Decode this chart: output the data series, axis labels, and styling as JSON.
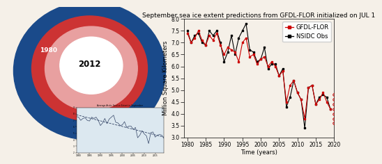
{
  "title": "September sea ice extent predictions from GFDL-FLOR initialized on JUL 1",
  "xlabel": "Time (years)",
  "ylabel": "Million Square Kilometers",
  "xlim": [
    1979,
    2020
  ],
  "ylim": [
    3.0,
    8.0
  ],
  "yticks": [
    3.0,
    3.5,
    4.0,
    4.5,
    5.0,
    5.5,
    6.0,
    6.5,
    7.0,
    7.5,
    8.0
  ],
  "xticks": [
    1980,
    1985,
    1990,
    1995,
    2000,
    2005,
    2010,
    2015,
    2020
  ],
  "gfdl_years": [
    1980,
    1981,
    1982,
    1983,
    1984,
    1985,
    1986,
    1987,
    1988,
    1989,
    1990,
    1991,
    1992,
    1993,
    1994,
    1995,
    1996,
    1997,
    1998,
    1999,
    2000,
    2001,
    2002,
    2003,
    2004,
    2005,
    2006,
    2007,
    2008,
    2009,
    2010,
    2011,
    2012,
    2013,
    2014,
    2015,
    2016,
    2017,
    2018,
    2019
  ],
  "gfdl_values": [
    7.4,
    7.0,
    7.2,
    7.5,
    7.1,
    6.9,
    7.3,
    7.1,
    7.4,
    6.9,
    6.5,
    6.8,
    6.7,
    6.6,
    6.2,
    7.0,
    7.2,
    6.4,
    6.5,
    6.1,
    6.3,
    6.4,
    6.0,
    6.2,
    6.0,
    5.6,
    5.8,
    4.5,
    5.2,
    5.4,
    4.9,
    4.6,
    3.8,
    5.1,
    5.2,
    4.4,
    4.6,
    4.9,
    4.5,
    4.2
  ],
  "nsidc_years": [
    1980,
    1981,
    1982,
    1983,
    1984,
    1985,
    1986,
    1987,
    1988,
    1989,
    1990,
    1991,
    1992,
    1993,
    1994,
    1995,
    1996,
    1997,
    1998,
    1999,
    2000,
    2001,
    2002,
    2003,
    2004,
    2005,
    2006,
    2007,
    2008,
    2009,
    2010,
    2011,
    2012,
    2013,
    2014,
    2015,
    2016,
    2017,
    2018,
    2019
  ],
  "nsidc_values": [
    7.5,
    7.0,
    7.3,
    7.4,
    7.0,
    6.9,
    7.5,
    7.3,
    7.5,
    7.0,
    6.2,
    6.6,
    7.3,
    6.5,
    7.2,
    7.5,
    7.8,
    6.7,
    6.6,
    6.2,
    6.3,
    6.8,
    5.9,
    6.1,
    6.1,
    5.6,
    5.9,
    4.3,
    4.7,
    5.4,
    4.9,
    4.6,
    3.4,
    5.1,
    5.2,
    4.4,
    4.7,
    4.8,
    4.7,
    4.2
  ],
  "future_values": [
    4.8,
    4.6,
    4.4,
    4.2,
    4.0,
    3.8,
    3.6
  ],
  "inset_years": [
    1979,
    1980,
    1981,
    1982,
    1983,
    1984,
    1985,
    1986,
    1987,
    1988,
    1989,
    1990,
    1991,
    1992,
    1993,
    1994,
    1995,
    1996,
    1997,
    1998,
    1999,
    2000,
    2001,
    2002,
    2003,
    2004,
    2005,
    2006,
    2007,
    2008,
    2009,
    2010,
    2011,
    2012,
    2013,
    2014,
    2015,
    2016,
    2017,
    2018,
    2019
  ],
  "inset_values": [
    7.6,
    7.5,
    7.0,
    7.3,
    7.4,
    7.0,
    6.9,
    7.5,
    7.3,
    7.5,
    7.0,
    6.2,
    6.6,
    7.3,
    6.5,
    7.2,
    7.5,
    7.8,
    6.7,
    6.6,
    6.2,
    6.3,
    6.8,
    5.9,
    6.1,
    6.1,
    5.6,
    5.9,
    4.3,
    4.7,
    5.4,
    4.9,
    4.6,
    3.4,
    5.1,
    5.2,
    4.4,
    4.7,
    4.8,
    4.7,
    4.2
  ],
  "gfdl_color": "#cc0000",
  "nsidc_color": "#000000",
  "future_color": "#cc0000",
  "background_color": "#f5f0e8",
  "title_fontsize": 6.5,
  "axis_fontsize": 6,
  "tick_fontsize": 5.5,
  "legend_fontsize": 6,
  "map_background": "#7a7a7a",
  "map_ocean": "#1a4a8a",
  "map_1980": "#cc3333",
  "map_1998": "#e8a0a0",
  "map_2012": "#ffffff",
  "inset_background": "#dce8f0"
}
